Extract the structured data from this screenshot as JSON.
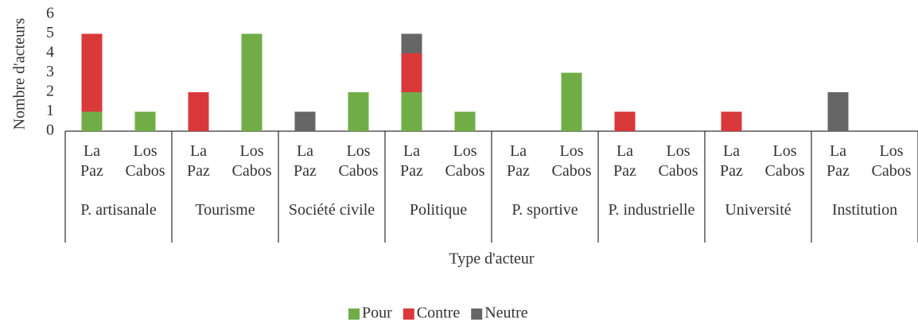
{
  "chart_data": {
    "type": "stacked_bar",
    "y_label": "Nombre d'acteurs",
    "x_label": "Type d'acteur",
    "categories": [
      "La Paz",
      "Los Cabos",
      "La Paz",
      "Los Cabos",
      "La Paz",
      "Los Cabos",
      "La Paz",
      "Los Cabos",
      "La Paz",
      "Los Cabos",
      "La Paz",
      "Los Cabos",
      "La Paz",
      "Los Cabos",
      "La Paz",
      "Los Cabos"
    ],
    "groups": [
      "P. artisanale",
      "Tourisme",
      "Société civile",
      "Politique",
      "P. sportive",
      "P. industrielle",
      "Université",
      "Institution"
    ],
    "series": [
      {
        "name": "Pour",
        "color": "#70ad47",
        "values": [
          1,
          1,
          0,
          5,
          0,
          2,
          2,
          1,
          0,
          3,
          0,
          0,
          0,
          0,
          0,
          0
        ]
      },
      {
        "name": "Contre",
        "color": "#d9393a",
        "values": [
          4,
          0,
          2,
          0,
          0,
          0,
          2,
          0,
          0,
          0,
          1,
          0,
          1,
          0,
          0,
          0
        ]
      },
      {
        "name": "Neutre",
        "color": "#666666",
        "values": [
          0,
          0,
          0,
          0,
          1,
          0,
          1,
          0,
          0,
          0,
          0,
          0,
          0,
          0,
          2,
          0
        ]
      }
    ],
    "ylim": [
      0,
      6
    ],
    "yticks": [
      0,
      1,
      2,
      3,
      4,
      5,
      6
    ],
    "legend": "bottom"
  }
}
